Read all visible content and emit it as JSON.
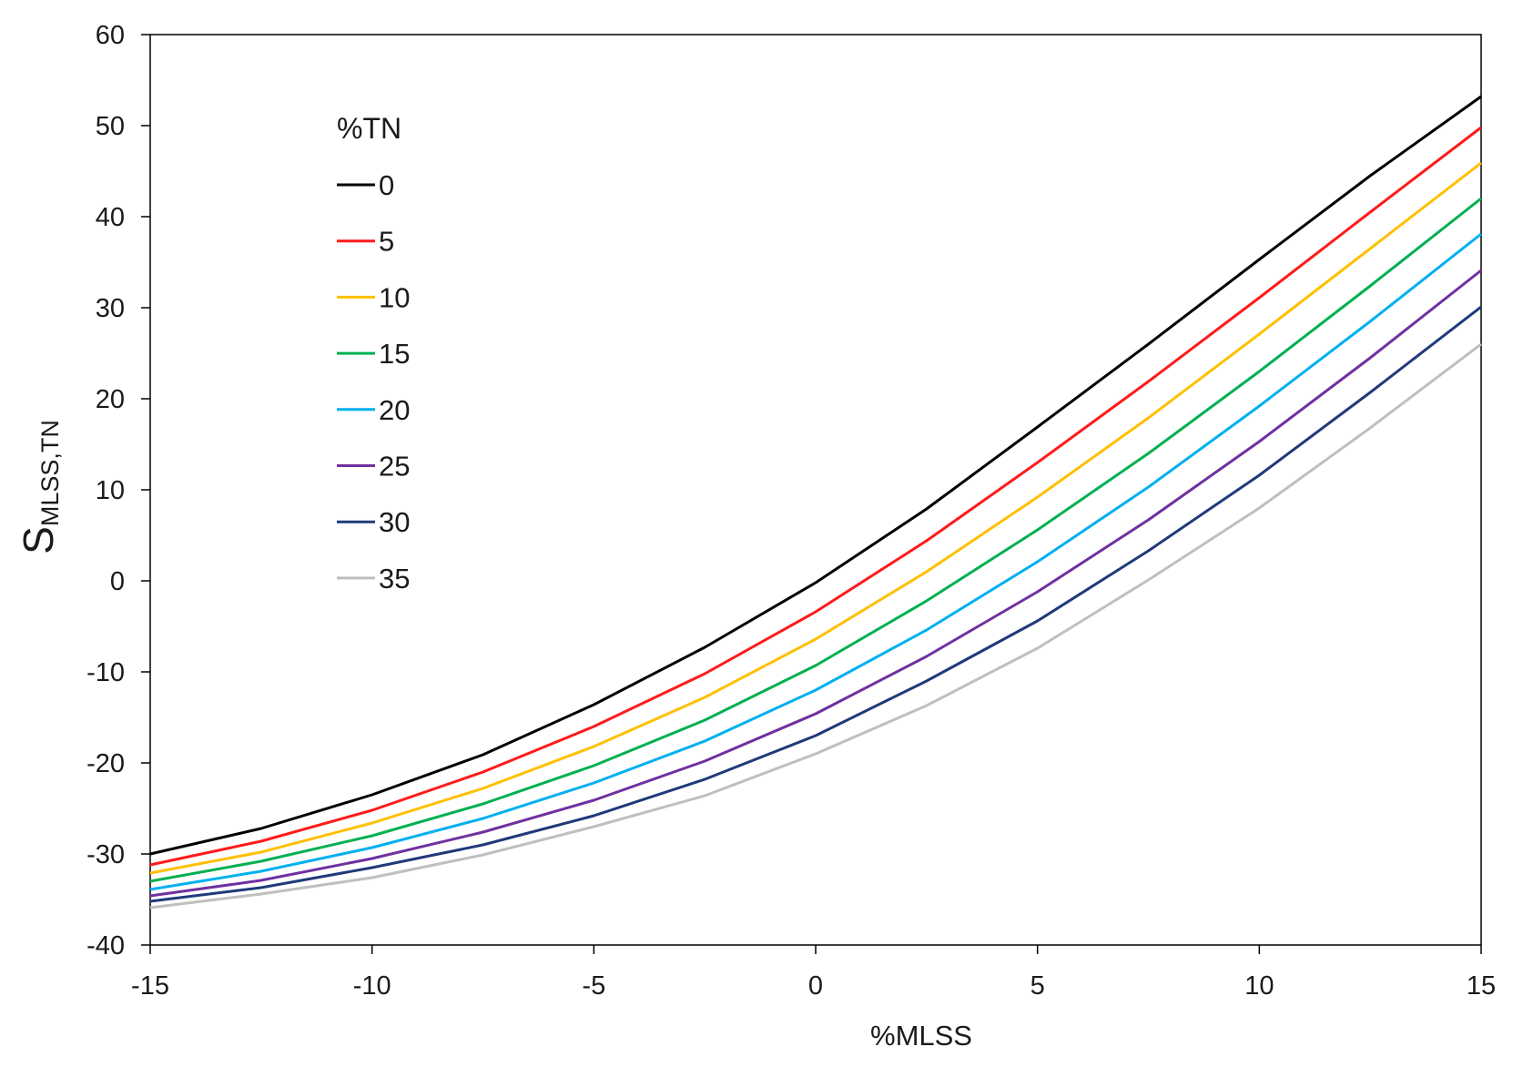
{
  "chart_data": {
    "type": "line",
    "xlabel": "%MLSS",
    "ylabel_main": "S",
    "ylabel_sub": "MLSS,TN",
    "xlim": [
      -15,
      15
    ],
    "ylim": [
      -40,
      60
    ],
    "xticks": [
      "-15",
      "-10",
      "-5",
      "0",
      "5",
      "10",
      "15"
    ],
    "yticks": [
      "60",
      "50",
      "40",
      "30",
      "20",
      "10",
      "0",
      "-10",
      "-20",
      "-30",
      "-40"
    ],
    "legend_title": "%TN",
    "legend_position": "upper-left",
    "x": [
      -15,
      -12.5,
      -10,
      -7.5,
      -5,
      -2.5,
      0,
      2.5,
      5,
      7.5,
      10,
      12.5,
      15
    ],
    "series": [
      {
        "name": "0",
        "color": "#000000",
        "values": [
          -30.0,
          -27.2,
          -23.5,
          -19.1,
          -13.6,
          -7.3,
          -0.2,
          7.9,
          16.9,
          26.0,
          35.3,
          44.5,
          53.2
        ]
      },
      {
        "name": "5",
        "color": "#ff1a1a",
        "values": [
          -31.2,
          -28.6,
          -25.2,
          -21.0,
          -16.0,
          -10.2,
          -3.4,
          4.4,
          13.0,
          21.9,
          31.1,
          40.5,
          49.8
        ]
      },
      {
        "name": "10",
        "color": "#ffc000",
        "values": [
          -32.1,
          -29.8,
          -26.6,
          -22.8,
          -18.2,
          -12.8,
          -6.4,
          1.0,
          9.2,
          17.9,
          27.1,
          36.5,
          45.9
        ]
      },
      {
        "name": "15",
        "color": "#00b050",
        "values": [
          -33.0,
          -30.8,
          -28.0,
          -24.5,
          -20.3,
          -15.3,
          -9.3,
          -2.2,
          5.6,
          14.0,
          23.0,
          32.4,
          42.0
        ]
      },
      {
        "name": "20",
        "color": "#00b0f0",
        "values": [
          -33.9,
          -31.9,
          -29.3,
          -26.1,
          -22.2,
          -17.6,
          -12.0,
          -5.4,
          2.1,
          10.3,
          19.2,
          28.5,
          38.1
        ]
      },
      {
        "name": "25",
        "color": "#7030a0",
        "values": [
          -34.6,
          -32.9,
          -30.5,
          -27.6,
          -24.1,
          -19.8,
          -14.6,
          -8.3,
          -1.2,
          6.7,
          15.3,
          24.5,
          34.1
        ]
      },
      {
        "name": "30",
        "color": "#1f3a7a",
        "values": [
          -35.2,
          -33.7,
          -31.5,
          -29.0,
          -25.8,
          -21.8,
          -17.0,
          -11.0,
          -4.4,
          3.3,
          11.6,
          20.7,
          30.1
        ]
      },
      {
        "name": "35",
        "color": "#bfbfbf",
        "values": [
          -35.9,
          -34.4,
          -32.6,
          -30.1,
          -27.0,
          -23.6,
          -19.0,
          -13.7,
          -7.4,
          0.1,
          8.0,
          16.8,
          26.0
        ]
      }
    ]
  }
}
